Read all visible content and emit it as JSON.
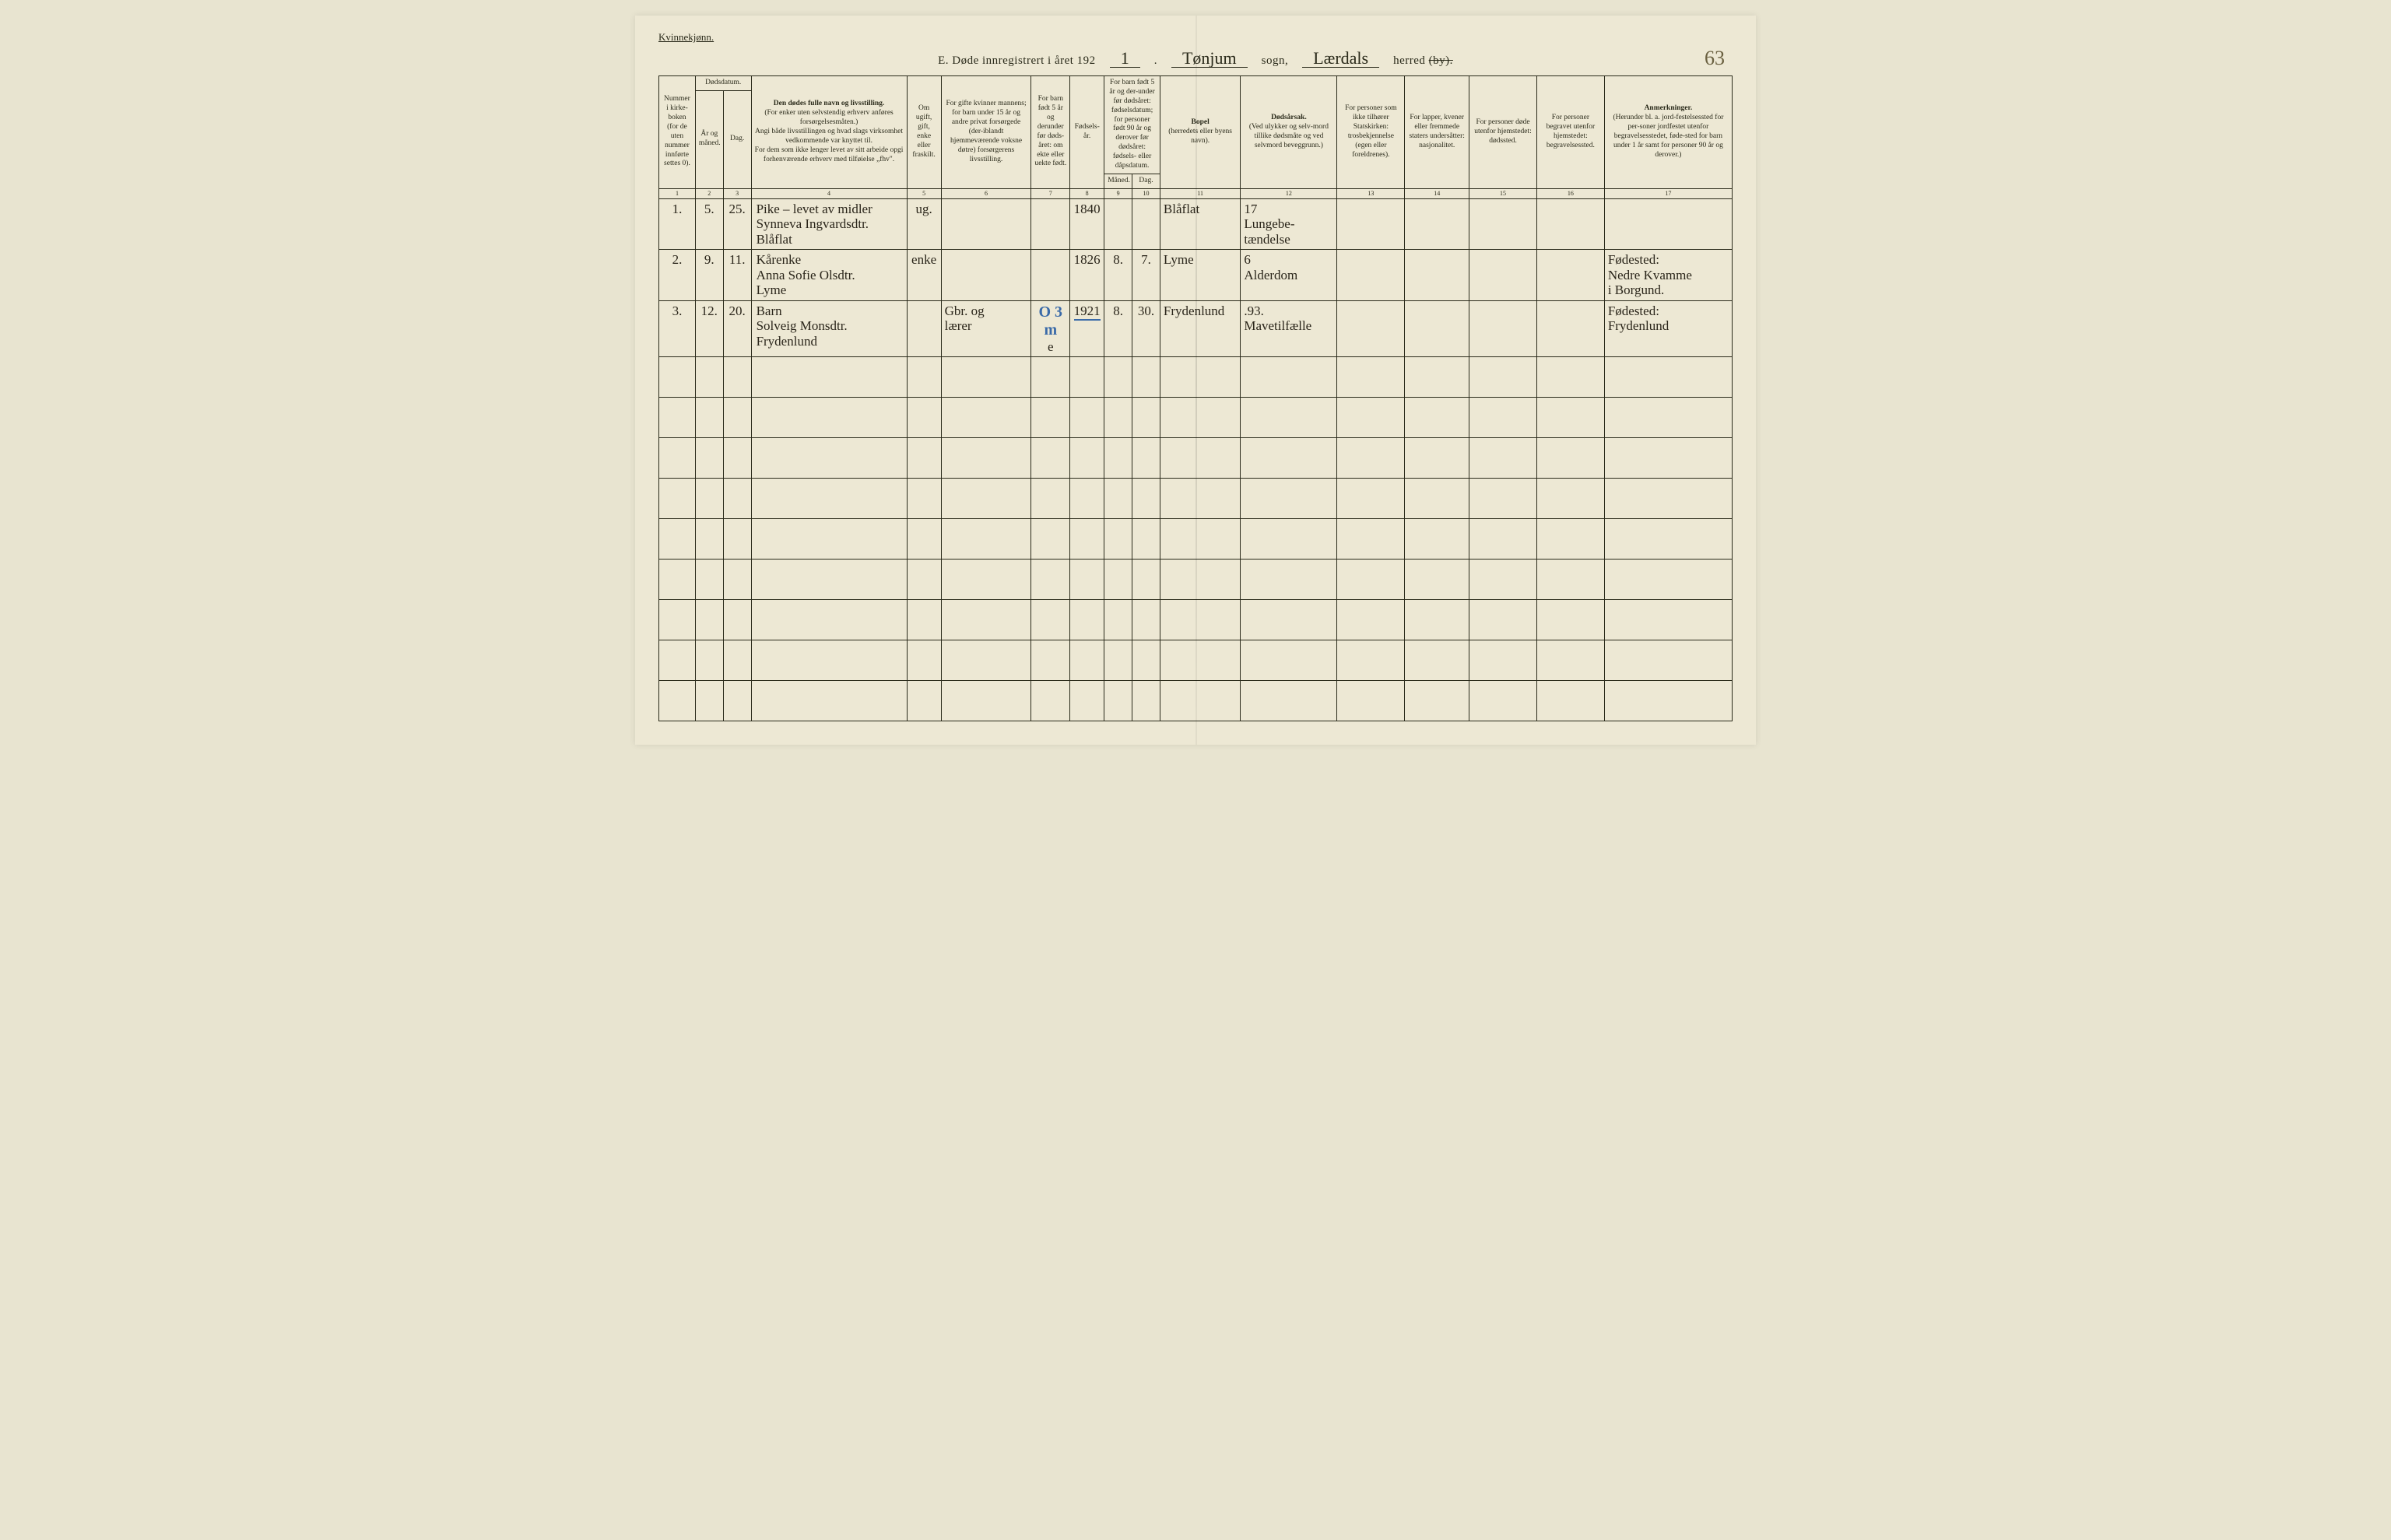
{
  "gender": "Kvinnekjønn.",
  "titlePrefix": "E.  Døde innregistrert i året 192",
  "titleYearDigit": "1",
  "titleSogn": "Tønjum",
  "titleSognLabel": "sogn,",
  "titleHerred": "Lærdals",
  "titleHerredLabel": "herred",
  "titleByStruck": "(by).",
  "pageNumber": "63",
  "headers": {
    "c1": "Nummer i kirke-boken (for de uten nummer innførte settes 0).",
    "c2top": "Dødsdatum.",
    "c2a": "År og måned.",
    "c2b": "Dag.",
    "c3top": "Den dødes fulle navn og livsstilling.",
    "c3sub": "(For enker uten selvstendig erhverv anføres forsørgelsesmåten.)\nAngi både livsstillingen og hvad slags virksomhet vedkommende var knyttet til.\nFor dem som ikke lenger levet av sitt arbeide opgi forhenværende erhverv med tilføielse „fhv\".",
    "c4": "Om ugift, gift, enke eller fraskilt.",
    "c5": "For gifte kvinner mannens; for barn under 15 år og andre privat forsørgede (der-iblandt hjemmeværende voksne døtre) forsørgerens livsstilling.",
    "c6": "For barn født 5 år og derunder før døds-året: om ekte eller uekte født.",
    "c7": "Fødsels-år.",
    "c8top": "For barn født 5 år og der-under før dødsåret: fødselsdatum; for personer født 90 år og derover før dødsåret: fødsels- eller dåpsdatum.",
    "c8a": "Måned.",
    "c8b": "Dag.",
    "c9top": "Bopel",
    "c9sub": "(herredets eller byens navn).",
    "c10top": "Dødsårsak.",
    "c10sub": "(Ved ulykker og selv-mord tillike dødsmåte og ved selvmord beveggrunn.)",
    "c11top": "For personer som ikke tilhører Statskirken:",
    "c11sub": "trosbekjennelse (egen eller foreldrenes).",
    "c12top": "For lapper, kvener eller fremmede staters undersåtter:",
    "c12sub": "nasjonalitet.",
    "c13top": "For personer døde utenfor hjemstedet:",
    "c13sub": "dødssted.",
    "c14top": "For personer begravet utenfor hjemstedet:",
    "c14sub": "begravelsessted.",
    "c15top": "Anmerkninger.",
    "c15sub": "(Herunder bl. a. jord-festelsessted for per-soner jordfestet utenfor begravelsesstedet, føde-sted for barn under 1 år samt for personer 90 år og derover.)"
  },
  "colnums": [
    "1",
    "2",
    "3",
    "4",
    "5",
    "6",
    "7",
    "8",
    "9",
    "10",
    "11",
    "12",
    "13",
    "14",
    "15",
    "16",
    "17"
  ],
  "rows": [
    {
      "num": "1.",
      "mo": "5.",
      "day": "25.",
      "name": "Pike – levet av midler\nSynneva Ingvardsdtr.\nBlåflat",
      "civil": "ug.",
      "prov": "",
      "ekte": "",
      "fyr": "1840",
      "fmd": "",
      "fdag": "",
      "bopel": "Blåflat",
      "cause": "17\nLungebe-\ntændelse",
      "c13": "",
      "c14": "",
      "c15": "",
      "c16": "",
      "c17": ""
    },
    {
      "num": "2.",
      "mo": "9.",
      "day": "11.",
      "name": "Kårenke\nAnna Sofie Olsdtr.\nLyme",
      "civil": "enke",
      "prov": "",
      "ekte": "",
      "fyr": "1826",
      "fmd": "8.",
      "fdag": "7.",
      "bopel": "Lyme",
      "cause": "6\nAlderdom",
      "c13": "",
      "c14": "",
      "c15": "",
      "c16": "",
      "c17": "Fødested:\nNedre Kvamme\ni Borgund."
    },
    {
      "num": "3.",
      "mo": "12.",
      "day": "20.",
      "name": "Barn\nSolveig Monsdtr.\nFrydenlund",
      "civil": "",
      "prov": "Gbr. og\nlærer",
      "ekte": "e",
      "fyr": "1921",
      "fmd": "8.",
      "fdag": "30.",
      "bopel": "Frydenlund",
      "cause": ".93.\nMavetilfælle",
      "c13": "",
      "c14": "",
      "c15": "",
      "c16": "",
      "c17": "Fødested:\nFrydenlund"
    }
  ],
  "blueMark": "O 3 m"
}
